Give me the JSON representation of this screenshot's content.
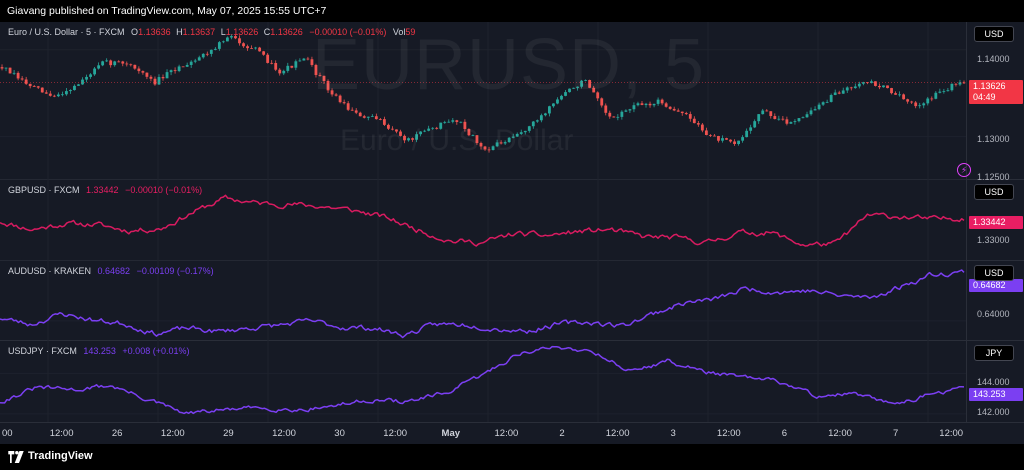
{
  "header": {
    "text": "Giavang published on TradingView.com, May 07, 2025 15:55 UTC+7"
  },
  "watermark": {
    "symbol": "EURUSD, 5",
    "description": "Euro / U.S. Dollar"
  },
  "panes": [
    {
      "legend_title": "Euro / U.S. Dollar · 5 · FXCM",
      "o_label": "O",
      "o_value": "1.13636",
      "h_label": "H",
      "h_value": "1.13637",
      "l_label": "L",
      "l_value": "1.13626",
      "c_label": "C",
      "c_value": "1.13626",
      "change": "−0.00010 (−0.01%)",
      "vol_label": "Vol",
      "vol_value": "59",
      "currency": "USD",
      "ticks": [
        "1.14000",
        "1.13000",
        "1.12500"
      ],
      "price_label": "1.13626",
      "countdown": "04:49",
      "color": "#f23645"
    },
    {
      "legend_title": "GBPUSD · FXCM",
      "value": "1.33442",
      "change": "−0.00010 (−0.01%)",
      "currency": "USD",
      "ticks": [
        "1.33000"
      ],
      "price_label": "1.33442",
      "color": "#d81b60"
    },
    {
      "legend_title": "AUDUSD · KRAKEN",
      "value": "0.64682",
      "change": "−0.00109 (−0.17%)",
      "currency": "USD",
      "ticks": [
        "0.64000"
      ],
      "price_label": "0.64682",
      "color": "#7b3ff2"
    },
    {
      "legend_title": "USDJPY · FXCM",
      "value": "143.253",
      "change": "+0.008 (+0.01%)",
      "currency": "JPY",
      "ticks": [
        "144.000",
        "142.000"
      ],
      "price_label": "143.253",
      "color": "#7b3ff2"
    }
  ],
  "time_axis": [
    "00",
    "12:00",
    "26",
    "12:00",
    "29",
    "12:00",
    "30",
    "12:00",
    "May",
    "12:00",
    "2",
    "12:00",
    "3",
    "12:00",
    "6",
    "12:00",
    "7",
    "12:00"
  ],
  "footer": {
    "brand": "TradingView"
  },
  "chart_data": [
    {
      "type": "candlestick",
      "series": [
        {
          "name": "Euro / U.S. Dollar · 5 · FXCM"
        }
      ],
      "last": {
        "open": 1.13636,
        "high": 1.13637,
        "low": 1.13626,
        "close": 1.13626,
        "volume": 59
      },
      "approx_path": [
        1.138,
        1.136,
        1.1345,
        1.136,
        1.1385,
        1.1385,
        1.1362,
        1.138,
        1.1395,
        1.1415,
        1.14,
        1.1375,
        1.139,
        1.135,
        1.1325,
        1.1318,
        1.1295,
        1.131,
        1.132,
        1.1285,
        1.1295,
        1.1315,
        1.1345,
        1.1365,
        1.132,
        1.1335,
        1.134,
        1.1325,
        1.13,
        1.129,
        1.133,
        1.1315,
        1.133,
        1.135,
        1.1365,
        1.1355,
        1.1335,
        1.135,
        1.1365
      ],
      "ticks": [
        1.14,
        1.13,
        1.125
      ],
      "colors": {
        "up": "#26a69a",
        "down": "#ef5350"
      }
    },
    {
      "type": "line",
      "series": [
        {
          "name": "GBPUSD · FXCM",
          "last": 1.33442,
          "color": "#d81b60"
        }
      ],
      "approx_path": [
        1.3339,
        1.3331,
        1.3337,
        1.3336,
        1.333,
        1.3332,
        1.3348,
        1.3362,
        1.3357,
        1.3356,
        1.3354,
        1.335,
        1.3343,
        1.3331,
        1.332,
        1.3318,
        1.3327,
        1.3325,
        1.3329,
        1.3331,
        1.3324,
        1.3323,
        1.3318,
        1.3328,
        1.3328,
        1.3316,
        1.3317,
        1.3345,
        1.3344,
        1.3341,
        1.3343
      ],
      "ticks": [
        1.33
      ]
    },
    {
      "type": "line",
      "series": [
        {
          "name": "AUDUSD · KRAKEN",
          "last": 0.64682,
          "color": "#7b3ff2"
        }
      ],
      "approx_path": [
        0.6404,
        0.6395,
        0.641,
        0.6401,
        0.6396,
        0.6382,
        0.639,
        0.6385,
        0.639,
        0.6394,
        0.64,
        0.6391,
        0.639,
        0.638,
        0.6395,
        0.6395,
        0.6389,
        0.6386,
        0.6396,
        0.6398,
        0.6393,
        0.641,
        0.6425,
        0.643,
        0.6445,
        0.644,
        0.6442,
        0.6435,
        0.6432,
        0.6448,
        0.6465,
        0.6468
      ],
      "ticks": [
        0.64
      ]
    },
    {
      "type": "line",
      "series": [
        {
          "name": "USDJPY · FXCM",
          "last": 143.253,
          "color": "#7b3ff2"
        }
      ],
      "approx_path": [
        142.6,
        143.3,
        143.2,
        143.4,
        142.7,
        142.0,
        142.2,
        142.3,
        142.2,
        142.4,
        142.7,
        142.6,
        143.0,
        143.9,
        145.0,
        145.3,
        145.1,
        144.1,
        144.6,
        144.1,
        143.8,
        143.6,
        142.9,
        143.0,
        142.5,
        142.9,
        143.3
      ],
      "ticks": [
        144,
        142
      ]
    }
  ]
}
